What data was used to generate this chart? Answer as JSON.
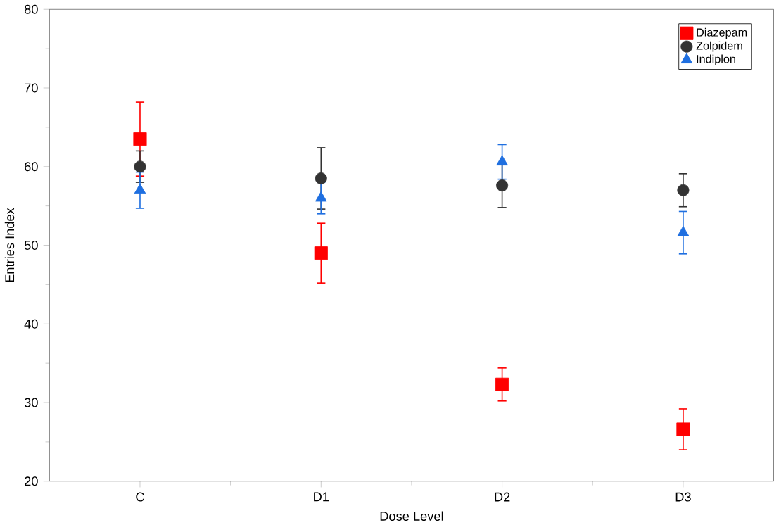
{
  "chart_data": {
    "type": "scatter",
    "xlabel": "Dose Level",
    "ylabel": "Entries Index",
    "categories": [
      "C",
      "D1",
      "D2",
      "D3"
    ],
    "series": [
      {
        "name": "Diazepam",
        "color": "#ff0000",
        "marker": "square",
        "values": [
          63.5,
          49,
          32.3,
          26.6
        ],
        "errors": [
          4.7,
          3.8,
          2.1,
          2.6
        ]
      },
      {
        "name": "Zolpidem",
        "color": "#333333",
        "marker": "circle",
        "values": [
          60,
          58.5,
          57.6,
          57
        ],
        "errors": [
          2,
          3.9,
          2.8,
          2.1
        ]
      },
      {
        "name": "Indiplon",
        "color": "#1f6fe0",
        "marker": "triangle",
        "values": [
          57,
          56,
          60.6,
          51.6
        ],
        "errors": [
          2.3,
          2,
          2.2,
          2.7
        ]
      }
    ],
    "ylim": [
      20,
      80
    ],
    "yticks": [
      20,
      30,
      40,
      50,
      60,
      70,
      80
    ],
    "grid": false,
    "legend": "top right"
  }
}
